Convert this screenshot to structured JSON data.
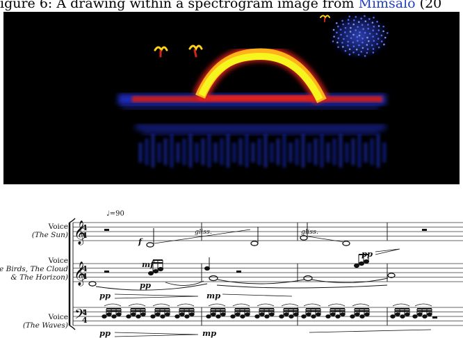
{
  "caption": {
    "text": "igure 6: A drawing within a spectrogram image from ",
    "link": "Mimsalo",
    "tail": " (20"
  },
  "score": {
    "tempo": "♩=90",
    "staves": [
      {
        "name": "Voice",
        "role": "(The Sun)"
      },
      {
        "name": "Voice",
        "role_line1": "(The Birds, The Cloud",
        "role_line2": "& The Horizon)"
      },
      {
        "name": "Voice",
        "role": "(The Waves)"
      }
    ],
    "time_signature": "4/4",
    "markings": {
      "f": "f",
      "mf": "mf",
      "pp": "pp",
      "mp": "mp",
      "gliss": "gliss."
    }
  }
}
